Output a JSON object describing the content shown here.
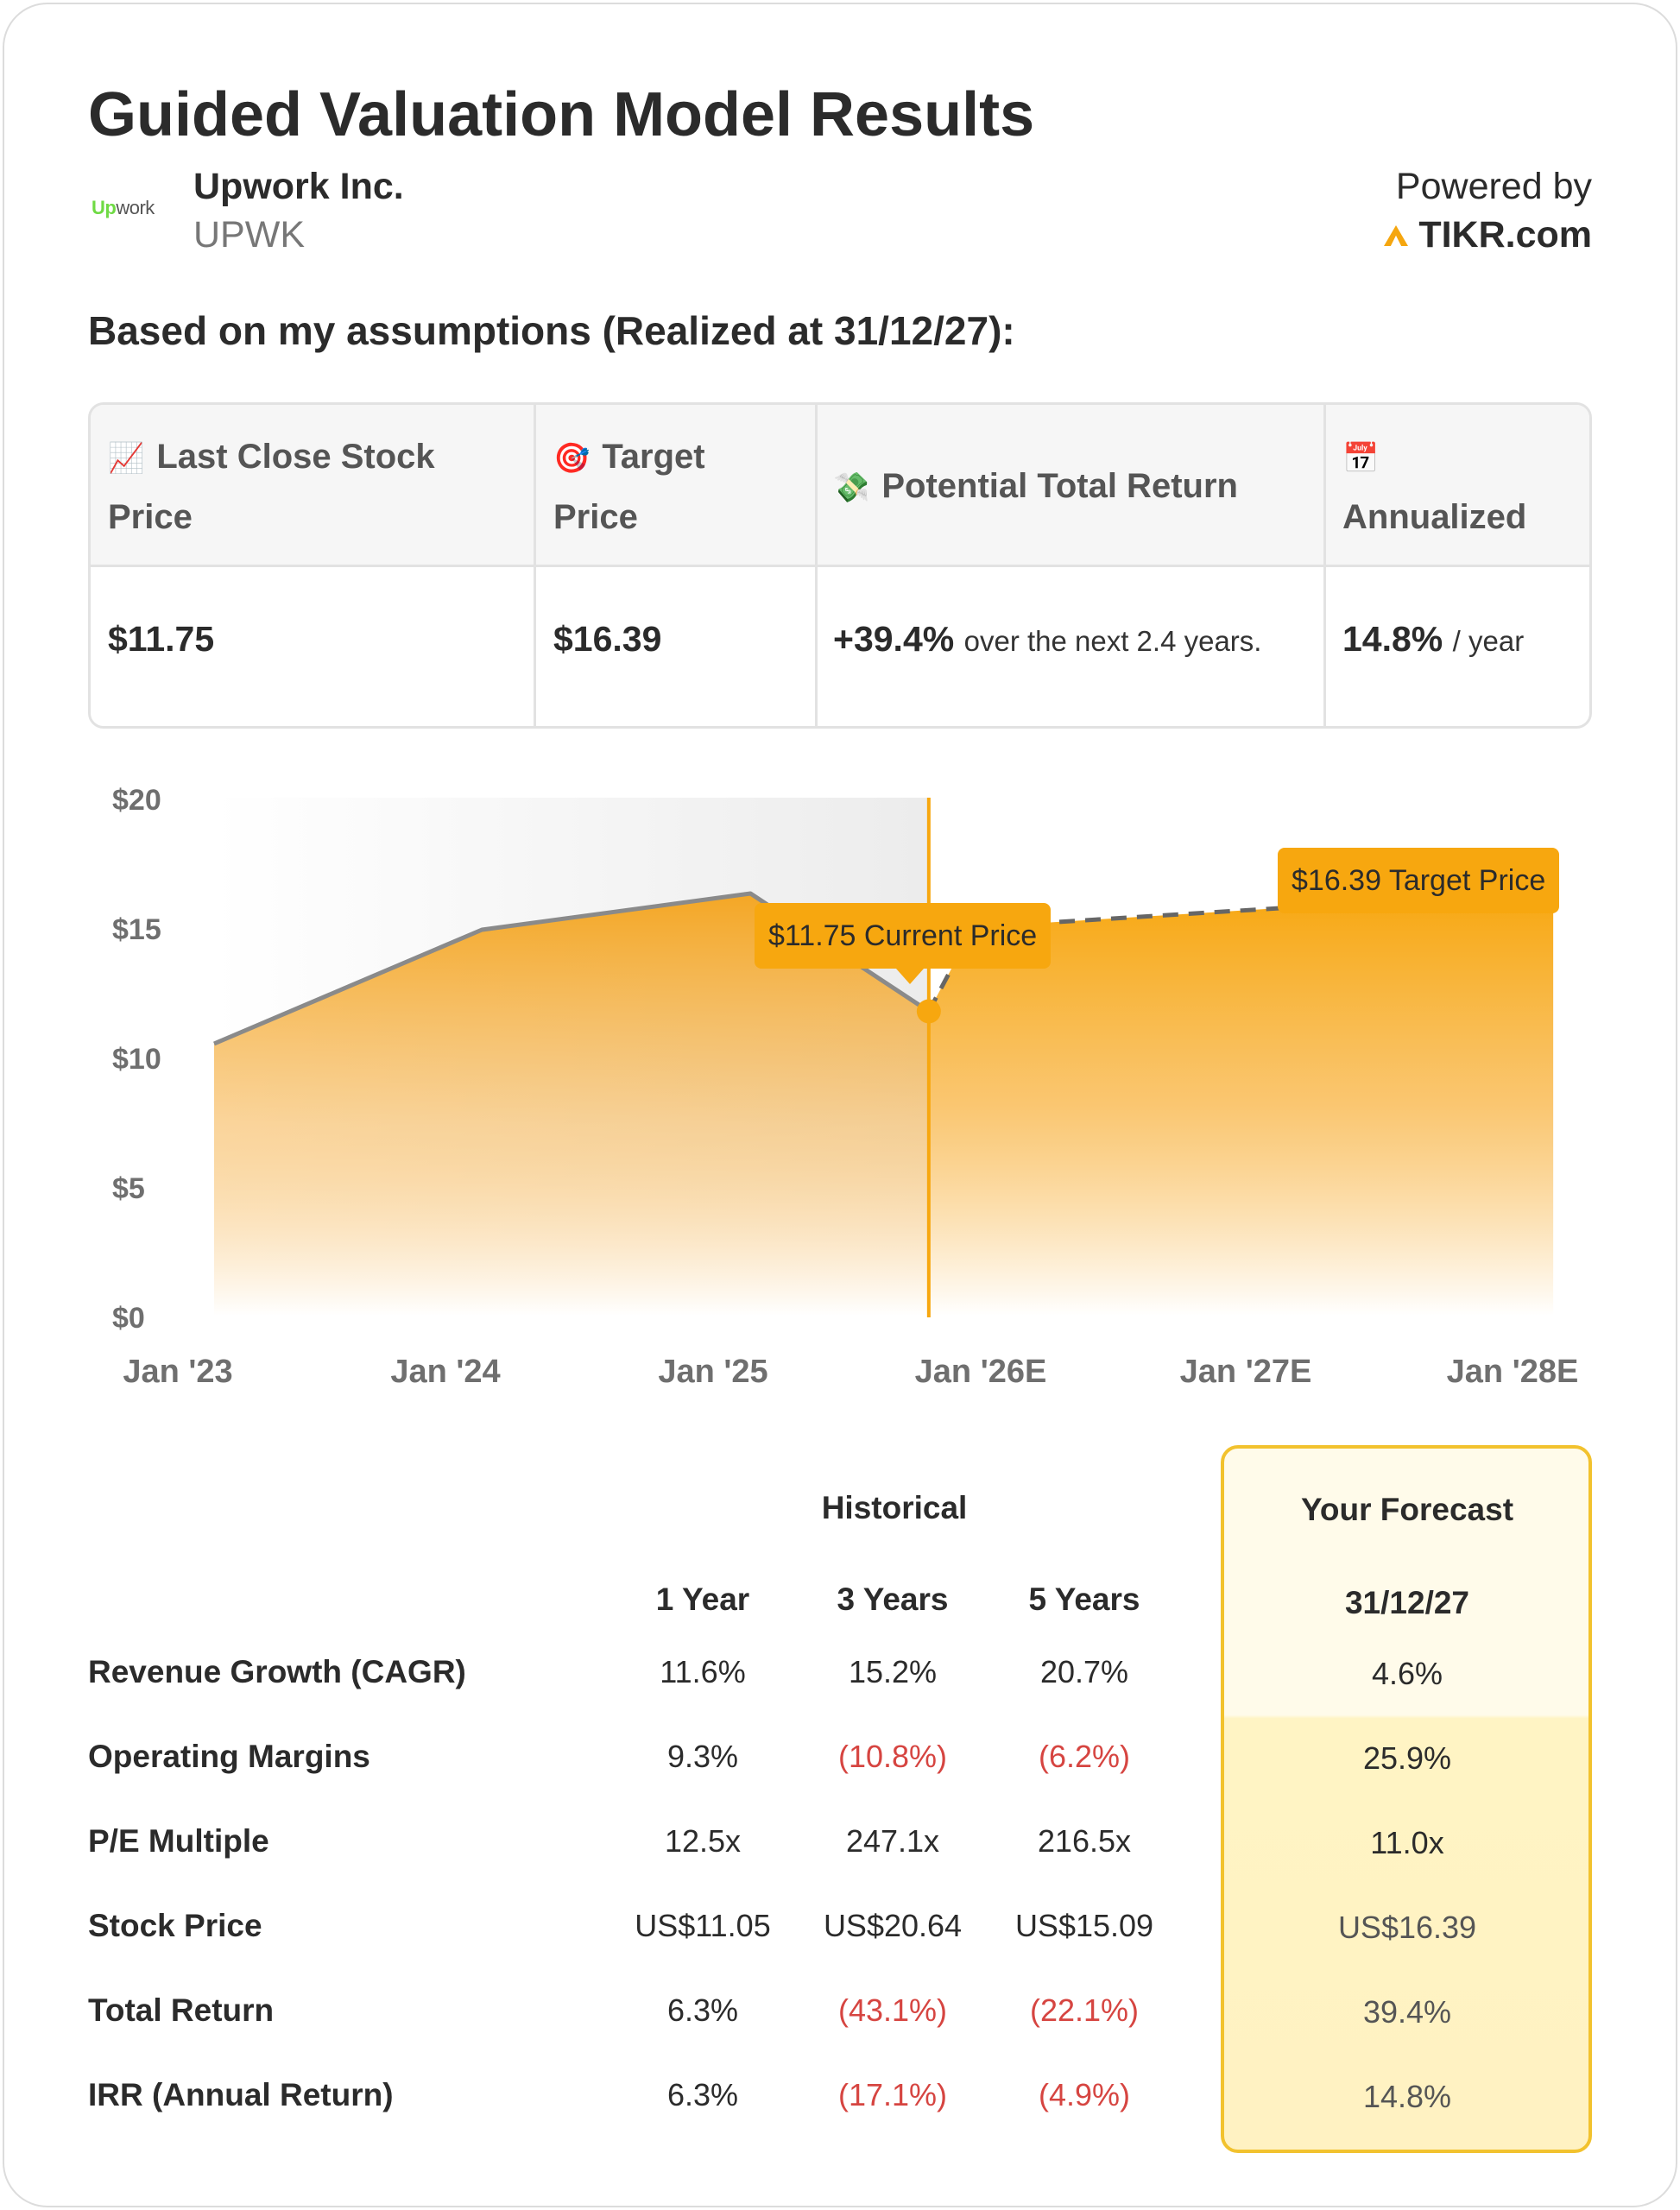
{
  "title": "Guided Valuation Model Results",
  "company": {
    "logo_text_green": "Up",
    "logo_text_rest": "work",
    "name": "Upwork Inc.",
    "ticker": "UPWK"
  },
  "powered": {
    "label": "Powered by",
    "brand": "TIKR.com"
  },
  "assumptions_heading": "Based on my assumptions (Realized at 31/12/27):",
  "summary": {
    "headers": [
      {
        "icon": "📈",
        "icon_name": "chart-increasing-icon",
        "label_line1": "Last Close Stock",
        "label_line2": "Price"
      },
      {
        "icon": "🎯",
        "icon_name": "target-icon",
        "label_line1": "Target",
        "label_line2": "Price"
      },
      {
        "icon": "💸",
        "icon_name": "money-wings-icon",
        "label_line1": "Potential Total Return",
        "label_line2": ""
      },
      {
        "icon": "📅",
        "icon_name": "calendar-icon",
        "label_line1": "",
        "label_line2": "Annualized"
      }
    ],
    "values": {
      "last_close": "$11.75",
      "target": "$16.39",
      "total_return": "+39.4%",
      "total_return_sub": "over the next 2.4 years.",
      "annualized": "14.8%",
      "annualized_sub": "/ year"
    }
  },
  "chart_data": {
    "type": "area",
    "y_ticks": [
      "$20",
      "$15",
      "$10",
      "$5",
      "$0"
    ],
    "x_ticks": [
      "Jan '23",
      "Jan '24",
      "Jan '25",
      "Jan '26E",
      "Jan '27E",
      "Jan '28E"
    ],
    "ylim": [
      0,
      20
    ],
    "historical": [
      {
        "x": "2023-01-01",
        "y": 10.5
      },
      {
        "x": "2024-01-01",
        "y": 14.9
      },
      {
        "x": "2025-01-01",
        "y": 16.3
      },
      {
        "x": "2025-09-01",
        "y": 11.75
      }
    ],
    "forecast": [
      {
        "x": "2025-09-01",
        "y": 11.75
      },
      {
        "x": "2025-11-01",
        "y": 15.0
      },
      {
        "x": "2027-12-31",
        "y": 16.39
      }
    ],
    "current_label": "$11.75 Current Price",
    "target_label": "$16.39 Target Price",
    "colors": {
      "fill": "#f4a31a",
      "line": "#8a8a8a",
      "marker": "#f7a70f"
    }
  },
  "metrics": {
    "historical_title": "Historical",
    "forecast_title": "Your Forecast",
    "columns": [
      "1 Year",
      "3 Years",
      "5 Years"
    ],
    "forecast_column": "31/12/27",
    "rows": [
      {
        "label": "Revenue Growth (CAGR)",
        "values": [
          "11.6%",
          "15.2%",
          "20.7%"
        ],
        "forecast": "4.6%"
      },
      {
        "label": "Operating Margins",
        "values": [
          "9.3%",
          "(10.8%)",
          "(6.2%)"
        ],
        "forecast": "25.9%"
      },
      {
        "label": "P/E Multiple",
        "values": [
          "12.5x",
          "247.1x",
          "216.5x"
        ],
        "forecast": "11.0x"
      },
      {
        "label": "Stock Price",
        "values": [
          "US$11.05",
          "US$20.64",
          "US$15.09"
        ],
        "forecast": "US$16.39"
      },
      {
        "label": "Total Return",
        "values": [
          "6.3%",
          "(43.1%)",
          "(22.1%)"
        ],
        "forecast": "39.4%"
      },
      {
        "label": "IRR (Annual Return)",
        "values": [
          "6.3%",
          "(17.1%)",
          "(4.9%)"
        ],
        "forecast": "14.8%"
      }
    ]
  }
}
